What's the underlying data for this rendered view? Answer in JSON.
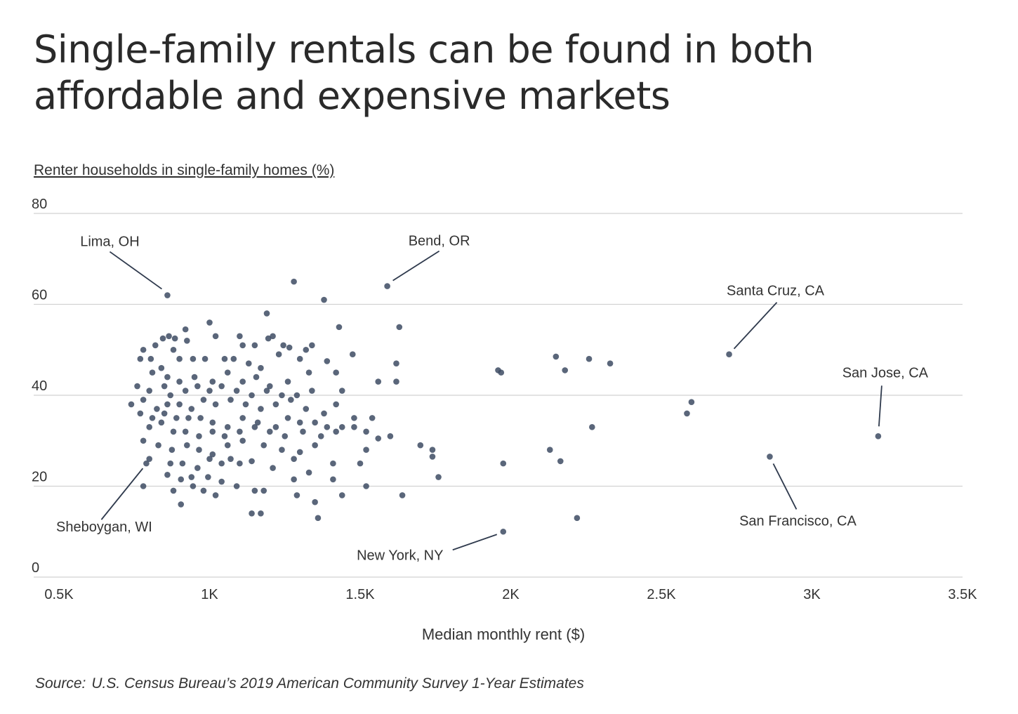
{
  "title": "Single-family rentals can be found in both affordable and expensive markets",
  "source": {
    "label": "Source:",
    "text": "U.S. Census Bureau’s 2019 American Community Survey 1-Year Estimates"
  },
  "colors": {
    "point": "#3d4b63",
    "grid": "#d2d2d2",
    "text": "#333333"
  },
  "chart_data": {
    "type": "scatter",
    "ylabel": "Renter households in single-family homes (%)",
    "xlabel": "Median monthly rent ($)",
    "xlim": [
      500,
      3500
    ],
    "ylim": [
      0,
      80
    ],
    "x_ticks": [
      500,
      1000,
      1500,
      2000,
      2500,
      3000,
      3500
    ],
    "x_tick_labels": [
      "0.5K",
      "1K",
      "1.5K",
      "2K",
      "2.5K",
      "3K",
      "3.5K"
    ],
    "y_ticks": [
      0,
      20,
      40,
      60,
      80
    ],
    "y_tick_labels": [
      "0",
      "20",
      "40",
      "60",
      "80"
    ],
    "grid": "horizontal",
    "annotations": [
      {
        "label": "Lima, OH",
        "x": 860,
        "y": 62
      },
      {
        "label": "Bend, OR",
        "x": 1590,
        "y": 64
      },
      {
        "label": "Santa Cruz, CA",
        "x": 2725,
        "y": 49
      },
      {
        "label": "San Jose, CA",
        "x": 3220,
        "y": 31
      },
      {
        "label": "Sheboygan, WI",
        "x": 790,
        "y": 25
      },
      {
        "label": "New York, NY",
        "x": 1975,
        "y": 10
      },
      {
        "label": "San Francisco, CA",
        "x": 2860,
        "y": 26.5
      }
    ],
    "points": [
      [
        860,
        62
      ],
      [
        1590,
        64
      ],
      [
        2725,
        49
      ],
      [
        3220,
        31
      ],
      [
        790,
        25
      ],
      [
        1975,
        10
      ],
      [
        2860,
        26.5
      ],
      [
        1280,
        65
      ],
      [
        1380,
        61
      ],
      [
        1630,
        55
      ],
      [
        1190,
        58
      ],
      [
        1000,
        56
      ],
      [
        1430,
        55
      ],
      [
        920,
        54.5
      ],
      [
        1020,
        53
      ],
      [
        1100,
        53
      ],
      [
        1195,
        52.5
      ],
      [
        1210,
        53
      ],
      [
        865,
        53
      ],
      [
        885,
        52.5
      ],
      [
        845,
        52.5
      ],
      [
        780,
        50
      ],
      [
        820,
        51
      ],
      [
        880,
        50
      ],
      [
        925,
        52
      ],
      [
        1110,
        51
      ],
      [
        1150,
        51
      ],
      [
        1245,
        51
      ],
      [
        1265,
        50.5
      ],
      [
        1320,
        50
      ],
      [
        1340,
        51
      ],
      [
        770,
        48
      ],
      [
        805,
        48
      ],
      [
        840,
        46
      ],
      [
        900,
        48
      ],
      [
        945,
        48
      ],
      [
        985,
        48
      ],
      [
        1050,
        48
      ],
      [
        1080,
        48
      ],
      [
        1130,
        47
      ],
      [
        1170,
        46
      ],
      [
        1230,
        49
      ],
      [
        1300,
        48
      ],
      [
        1390,
        47.5
      ],
      [
        1475,
        49
      ],
      [
        1620,
        47
      ],
      [
        1958,
        45.5
      ],
      [
        1968,
        45
      ],
      [
        2150,
        48.5
      ],
      [
        2180,
        45.5
      ],
      [
        2260,
        48
      ],
      [
        2330,
        47
      ],
      [
        810,
        45
      ],
      [
        860,
        44
      ],
      [
        900,
        43
      ],
      [
        950,
        44
      ],
      [
        1010,
        43
      ],
      [
        1060,
        45
      ],
      [
        1110,
        43
      ],
      [
        1155,
        44
      ],
      [
        1200,
        42
      ],
      [
        1260,
        43
      ],
      [
        1330,
        45
      ],
      [
        1420,
        45
      ],
      [
        1560,
        43
      ],
      [
        1620,
        43
      ],
      [
        760,
        42
      ],
      [
        800,
        41
      ],
      [
        850,
        42
      ],
      [
        870,
        40
      ],
      [
        920,
        41
      ],
      [
        960,
        42
      ],
      [
        1000,
        41
      ],
      [
        1040,
        42
      ],
      [
        1090,
        41
      ],
      [
        1140,
        40
      ],
      [
        1190,
        41
      ],
      [
        1240,
        40
      ],
      [
        1290,
        40
      ],
      [
        1340,
        41
      ],
      [
        1440,
        41
      ],
      [
        740,
        38
      ],
      [
        780,
        39
      ],
      [
        825,
        37
      ],
      [
        860,
        38
      ],
      [
        900,
        38
      ],
      [
        940,
        37
      ],
      [
        980,
        39
      ],
      [
        1020,
        38
      ],
      [
        1070,
        39
      ],
      [
        1120,
        38
      ],
      [
        1170,
        37
      ],
      [
        1220,
        38
      ],
      [
        1270,
        39
      ],
      [
        1320,
        37
      ],
      [
        1380,
        36
      ],
      [
        1420,
        38
      ],
      [
        2600,
        38.5
      ],
      [
        770,
        36
      ],
      [
        810,
        35
      ],
      [
        850,
        36
      ],
      [
        890,
        35
      ],
      [
        930,
        35
      ],
      [
        970,
        35
      ],
      [
        1010,
        34
      ],
      [
        1060,
        33
      ],
      [
        1110,
        35
      ],
      [
        1160,
        34
      ],
      [
        1220,
        33
      ],
      [
        1260,
        35
      ],
      [
        1300,
        34
      ],
      [
        1350,
        34
      ],
      [
        1390,
        33
      ],
      [
        1440,
        33
      ],
      [
        1480,
        35
      ],
      [
        1540,
        35
      ],
      [
        2585,
        36
      ],
      [
        800,
        33
      ],
      [
        840,
        34
      ],
      [
        880,
        32
      ],
      [
        920,
        32
      ],
      [
        965,
        31
      ],
      [
        1010,
        32
      ],
      [
        1050,
        31
      ],
      [
        1100,
        32
      ],
      [
        1150,
        33
      ],
      [
        1200,
        32
      ],
      [
        1250,
        31
      ],
      [
        1310,
        32
      ],
      [
        1370,
        31
      ],
      [
        1420,
        32
      ],
      [
        1480,
        33
      ],
      [
        1520,
        32
      ],
      [
        1560,
        30.5
      ],
      [
        1600,
        31
      ],
      [
        2270,
        33
      ],
      [
        780,
        30
      ],
      [
        830,
        29
      ],
      [
        875,
        28
      ],
      [
        925,
        29
      ],
      [
        965,
        28
      ],
      [
        1010,
        27
      ],
      [
        1060,
        29
      ],
      [
        1110,
        30
      ],
      [
        1180,
        29
      ],
      [
        1240,
        28
      ],
      [
        1300,
        27.5
      ],
      [
        1350,
        29
      ],
      [
        1520,
        28
      ],
      [
        1700,
        29
      ],
      [
        1740,
        28
      ],
      [
        2130,
        28
      ],
      [
        800,
        26
      ],
      [
        870,
        25
      ],
      [
        910,
        25
      ],
      [
        960,
        24
      ],
      [
        1000,
        26
      ],
      [
        1040,
        25
      ],
      [
        1070,
        26
      ],
      [
        1100,
        25
      ],
      [
        1140,
        25.5
      ],
      [
        1210,
        24
      ],
      [
        1280,
        26
      ],
      [
        1410,
        25
      ],
      [
        1500,
        25
      ],
      [
        1740,
        26.5
      ],
      [
        1975,
        25
      ],
      [
        2165,
        25.5
      ],
      [
        860,
        22.5
      ],
      [
        905,
        21.5
      ],
      [
        940,
        22
      ],
      [
        995,
        22
      ],
      [
        1040,
        21
      ],
      [
        1090,
        20
      ],
      [
        1150,
        19
      ],
      [
        1280,
        21.5
      ],
      [
        1330,
        23
      ],
      [
        1410,
        21.5
      ],
      [
        1520,
        20
      ],
      [
        1760,
        22
      ],
      [
        780,
        20
      ],
      [
        880,
        19
      ],
      [
        945,
        20
      ],
      [
        980,
        19
      ],
      [
        1020,
        18
      ],
      [
        1180,
        19
      ],
      [
        1290,
        18
      ],
      [
        1350,
        16.5
      ],
      [
        1440,
        18
      ],
      [
        1640,
        18
      ],
      [
        905,
        16
      ],
      [
        1140,
        14
      ],
      [
        1170,
        14
      ],
      [
        1360,
        13
      ],
      [
        2220,
        13
      ]
    ]
  }
}
